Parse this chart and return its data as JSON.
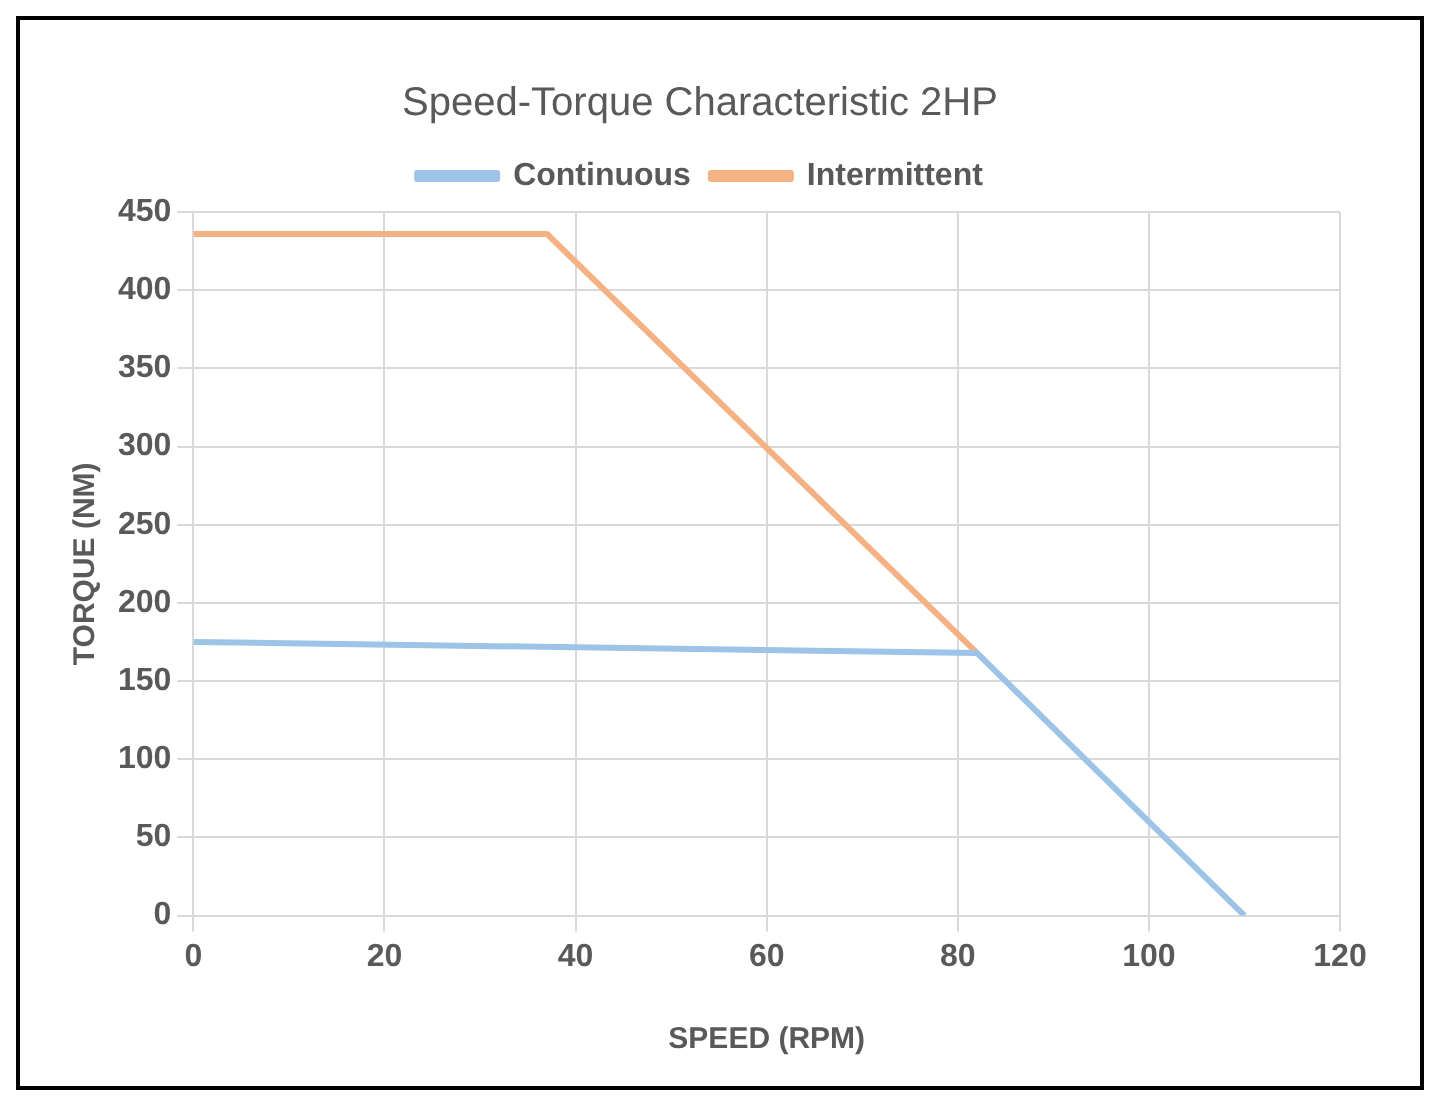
{
  "chart_data": {
    "type": "line",
    "title": "Speed-Torque Characteristic 2HP",
    "xlabel": "SPEED (RPM)",
    "ylabel": "TORQUE (NM)",
    "series": [
      {
        "name": "Continuous",
        "color": "#9dc3e6",
        "x": [
          0,
          82,
          110
        ],
        "values": [
          175,
          168,
          0
        ]
      },
      {
        "name": "Intermittent",
        "color": "#f4b183",
        "x": [
          0,
          37,
          82
        ],
        "values": [
          436,
          436,
          168
        ]
      }
    ],
    "xlim": [
      0,
      120
    ],
    "xticks": [
      0,
      20,
      40,
      60,
      80,
      100,
      120
    ],
    "ylim": [
      0,
      450
    ],
    "yticks": [
      0,
      50,
      100,
      150,
      200,
      250,
      300,
      350,
      400,
      450
    ],
    "grid": true,
    "legend": "top",
    "marker": "none",
    "line_style": "solid"
  }
}
